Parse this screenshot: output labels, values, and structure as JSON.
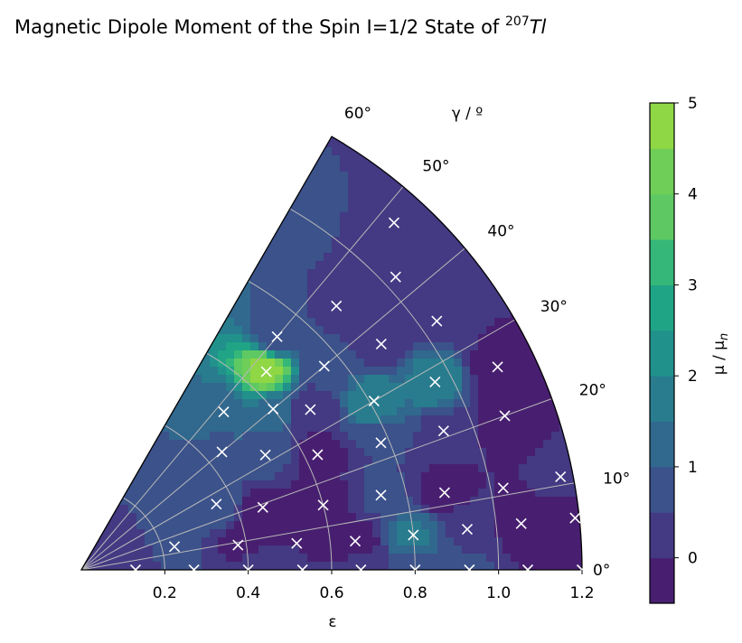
{
  "chart_data": {
    "type": "heatmap",
    "projection": "polar-sector",
    "title": "Magnetic Dipole Moment of the Spin I=1/2 State of ",
    "title_superscript": "207",
    "title_element": "Tl",
    "xlabel": "ε",
    "angle_label": "γ / º",
    "colorbar_label": "μ / μ",
    "colorbar_label_sub": "n",
    "radial_range": [
      0,
      1.2
    ],
    "angle_range_deg": [
      0,
      60
    ],
    "radial_ticks": [
      0.2,
      0.4,
      0.6,
      0.8,
      1.0,
      1.2
    ],
    "radial_tick_labels": [
      "0.2",
      "0.4",
      "0.6",
      "0.8",
      "1.0",
      "1.2"
    ],
    "angle_ticks_deg": [
      0,
      10,
      20,
      30,
      40,
      50,
      60
    ],
    "angle_tick_labels": [
      "0°",
      "10°",
      "20°",
      "30°",
      "40°",
      "50°",
      "60°"
    ],
    "colorbar_range": [
      -0.5,
      5
    ],
    "colorbar_ticks": [
      0,
      1,
      2,
      3,
      4,
      5
    ],
    "colorbar_tick_labels": [
      "0",
      "1",
      "2",
      "3",
      "4",
      "5"
    ],
    "colorbar_levels": [
      -0.5,
      0,
      0.5,
      1,
      1.5,
      2,
      2.5,
      3,
      3.5,
      4,
      4.5,
      5
    ],
    "colorbar_colors": [
      "#481f70",
      "#443983",
      "#3b528b",
      "#31688e",
      "#287c8e",
      "#21918c",
      "#20a486",
      "#35b779",
      "#5ec962",
      "#6ece58",
      "#8fd744"
    ],
    "grid": true,
    "grid_color": "#b8b8b8",
    "marker": "x",
    "marker_color": "#ffffff",
    "points": [
      {
        "eps": 0.13,
        "gamma": 0,
        "mu": 0.2
      },
      {
        "eps": 0.27,
        "gamma": 0,
        "mu": 0.5
      },
      {
        "eps": 0.4,
        "gamma": 0,
        "mu": 0.3
      },
      {
        "eps": 0.53,
        "gamma": 0,
        "mu": 0.0
      },
      {
        "eps": 0.67,
        "gamma": 0,
        "mu": 0.2
      },
      {
        "eps": 0.8,
        "gamma": 0,
        "mu": 0.8
      },
      {
        "eps": 0.93,
        "gamma": 0,
        "mu": 0.6
      },
      {
        "eps": 1.07,
        "gamma": 0,
        "mu": 0.0
      },
      {
        "eps": 1.2,
        "gamma": 0,
        "mu": -0.1
      },
      {
        "eps": 0.23,
        "gamma": 14,
        "mu": 0.7
      },
      {
        "eps": 0.38,
        "gamma": 9,
        "mu": -0.2
      },
      {
        "eps": 0.52,
        "gamma": 7,
        "mu": 0.0
      },
      {
        "eps": 0.66,
        "gamma": 6,
        "mu": -0.3
      },
      {
        "eps": 0.8,
        "gamma": 6,
        "mu": 1.6
      },
      {
        "eps": 0.93,
        "gamma": 6,
        "mu": 0.4
      },
      {
        "eps": 1.06,
        "gamma": 6,
        "mu": -0.3
      },
      {
        "eps": 1.19,
        "gamma": 6,
        "mu": -0.3
      },
      {
        "eps": 0.36,
        "gamma": 26,
        "mu": 1.0
      },
      {
        "eps": 0.46,
        "gamma": 19,
        "mu": -0.3
      },
      {
        "eps": 0.6,
        "gamma": 15,
        "mu": -0.3
      },
      {
        "eps": 0.74,
        "gamma": 14,
        "mu": 0.6
      },
      {
        "eps": 0.89,
        "gamma": 12,
        "mu": -0.3
      },
      {
        "eps": 1.03,
        "gamma": 11,
        "mu": 0.0
      },
      {
        "eps": 1.17,
        "gamma": 11,
        "mu": 0.2
      },
      {
        "eps": 0.44,
        "gamma": 40,
        "mu": 0.9
      },
      {
        "eps": 0.52,
        "gamma": 32,
        "mu": 0.8
      },
      {
        "eps": 0.63,
        "gamma": 26,
        "mu": -0.3
      },
      {
        "eps": 0.78,
        "gamma": 23,
        "mu": 0.5
      },
      {
        "eps": 0.93,
        "gamma": 21,
        "mu": 0.3
      },
      {
        "eps": 1.08,
        "gamma": 20,
        "mu": -0.4
      },
      {
        "eps": 0.51,
        "gamma": 48,
        "mu": 1.3
      },
      {
        "eps": 0.6,
        "gamma": 40,
        "mu": 1.3
      },
      {
        "eps": 0.67,
        "gamma": 35,
        "mu": 0.1
      },
      {
        "eps": 0.81,
        "gamma": 30,
        "mu": 2.0
      },
      {
        "eps": 0.96,
        "gamma": 28,
        "mu": 2.0
      },
      {
        "eps": 1.11,
        "gamma": 26,
        "mu": -0.3
      },
      {
        "eps": 0.65,
        "gamma": 47,
        "mu": 4.8
      },
      {
        "eps": 0.76,
        "gamma": 40,
        "mu": 0.6
      },
      {
        "eps": 0.9,
        "gamma": 37,
        "mu": 0.2
      },
      {
        "eps": 1.04,
        "gamma": 35,
        "mu": 0.2
      },
      {
        "eps": 0.73,
        "gamma": 50,
        "mu": 0.6
      },
      {
        "eps": 0.88,
        "gamma": 46,
        "mu": 0.4
      },
      {
        "eps": 1.03,
        "gamma": 43,
        "mu": 0.4
      },
      {
        "eps": 1.12,
        "gamma": 48,
        "mu": 0.5
      }
    ]
  }
}
